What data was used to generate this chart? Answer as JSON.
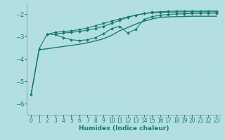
{
  "xlabel": "Humidex (Indice chaleur)",
  "bg_color": "#b2e0e0",
  "grid_color": "#c8e8e8",
  "line_color": "#1a7a6a",
  "xlim": [
    -0.5,
    23.5
  ],
  "ylim": [
    -6.5,
    -1.5
  ],
  "yticks": [
    -6,
    -5,
    -4,
    -3,
    -2
  ],
  "xticks": [
    0,
    1,
    2,
    3,
    4,
    5,
    6,
    7,
    8,
    9,
    10,
    11,
    12,
    13,
    14,
    15,
    16,
    17,
    18,
    19,
    20,
    21,
    22,
    23
  ],
  "series": [
    {
      "x": [
        0,
        1,
        2,
        3,
        4,
        5,
        6,
        7,
        8,
        9,
        10,
        11,
        12,
        13,
        14,
        15,
        16,
        17,
        18,
        19,
        20,
        21,
        22,
        23
      ],
      "y": [
        -5.6,
        -3.6,
        -3.55,
        -3.5,
        -3.45,
        -3.4,
        -3.35,
        -3.28,
        -3.2,
        -3.1,
        -2.95,
        -2.75,
        -2.6,
        -2.45,
        -2.32,
        -2.22,
        -2.15,
        -2.13,
        -2.12,
        -2.11,
        -2.1,
        -2.1,
        -2.1,
        -2.1
      ],
      "marker": null,
      "lw": 1.0
    },
    {
      "x": [
        0,
        1,
        2,
        3,
        4,
        5,
        6,
        7,
        8,
        9,
        10,
        11,
        12,
        13,
        14,
        15,
        16,
        17,
        18,
        19,
        20,
        21,
        22,
        23
      ],
      "y": [
        -5.6,
        -3.55,
        -2.9,
        -2.82,
        -2.78,
        -2.75,
        -2.7,
        -2.62,
        -2.52,
        -2.42,
        -2.32,
        -2.22,
        -2.13,
        -2.05,
        -1.98,
        -1.95,
        -1.93,
        -1.92,
        -1.91,
        -1.9,
        -1.9,
        -1.9,
        -1.9,
        -1.9
      ],
      "marker": "D",
      "lw": 0.8
    },
    {
      "x": [
        3,
        4,
        5,
        6,
        7,
        8,
        9,
        10,
        11,
        12,
        13,
        14,
        15,
        16,
        17,
        18,
        19,
        20,
        21,
        22,
        23
      ],
      "y": [
        -2.88,
        -2.85,
        -2.82,
        -2.78,
        -2.72,
        -2.65,
        -2.55,
        -2.42,
        -2.28,
        -2.15,
        -2.05,
        -1.98,
        -1.92,
        -1.9,
        -1.88,
        -1.87,
        -1.87,
        -1.87,
        -1.87,
        -1.87,
        -1.87
      ],
      "marker": "D",
      "lw": 0.8
    },
    {
      "x": [
        2,
        3,
        4,
        5,
        6,
        7,
        8,
        9,
        10,
        11,
        12,
        13,
        14,
        15,
        16,
        17,
        18,
        19,
        20,
        21,
        22,
        23
      ],
      "y": [
        -2.9,
        -2.92,
        -3.05,
        -3.15,
        -3.18,
        -3.15,
        -3.05,
        -2.88,
        -2.65,
        -2.55,
        -2.85,
        -2.68,
        -2.25,
        -2.12,
        -2.05,
        -2.02,
        -2.0,
        -1.99,
        -1.98,
        -1.97,
        -1.97,
        -1.97
      ],
      "marker": "D",
      "lw": 0.8
    }
  ]
}
